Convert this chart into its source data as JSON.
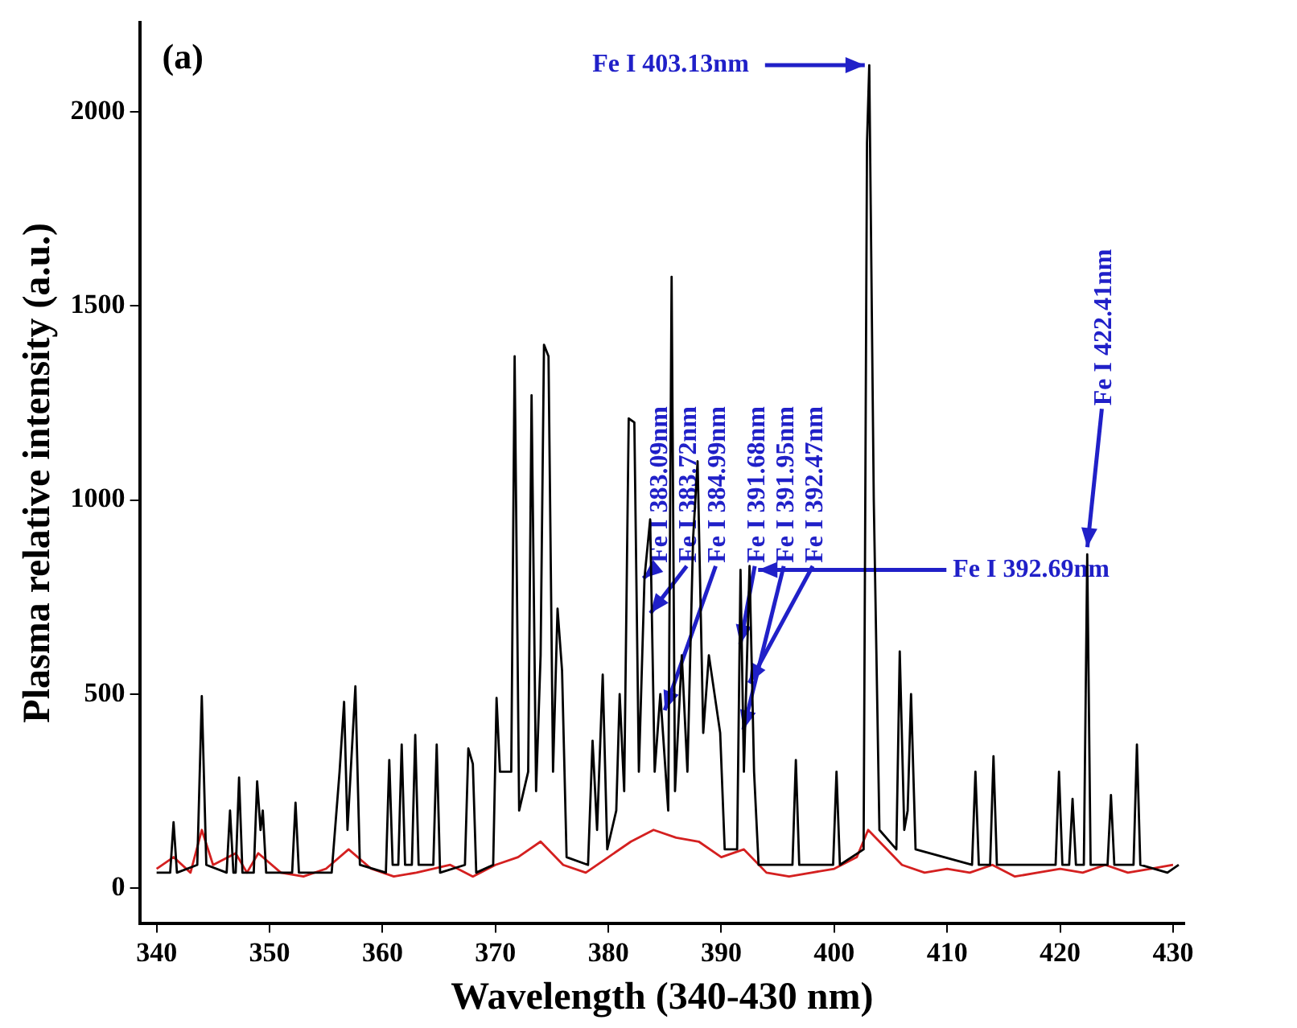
{
  "chart_data": {
    "type": "line",
    "xlabel": "Wavelength (340-430 nm)",
    "ylabel": "Plasma relative intensity (a.u.)",
    "xlim": [
      338.5,
      431
    ],
    "xticks": [
      340,
      350,
      360,
      370,
      380,
      390,
      400,
      410,
      420,
      430
    ],
    "ylim": [
      -90,
      2230
    ],
    "yticks": [
      0,
      500,
      1000,
      1500,
      2000
    ],
    "grid": false,
    "legend": false,
    "marker": "none",
    "line_style": "solid",
    "series": [
      {
        "color": "#000000",
        "x": [
          340,
          341.2,
          341.5,
          341.8,
          343.6,
          344.0,
          344.4,
          346.2,
          346.5,
          346.8,
          347.0,
          347.3,
          347.6,
          348.6,
          348.9,
          349.2,
          349.4,
          349.7,
          351.0,
          352.0,
          352.3,
          352.6,
          355.5,
          356.2,
          356.6,
          356.9,
          357.6,
          358.0,
          360.3,
          360.6,
          360.9,
          361.4,
          361.7,
          362.0,
          362.6,
          362.9,
          363.2,
          364.5,
          364.8,
          365.1,
          367.3,
          367.6,
          368.0,
          368.3,
          369.8,
          370.1,
          370.4,
          371.4,
          371.7,
          372.1,
          372.9,
          373.2,
          373.6,
          374.0,
          374.3,
          374.7,
          375.1,
          375.5,
          375.9,
          376.3,
          378.2,
          378.6,
          379.0,
          379.5,
          379.9,
          380.7,
          381.0,
          381.4,
          381.8,
          382.3,
          382.7,
          383.2,
          383.7,
          384.1,
          384.6,
          385.3,
          385.6,
          385.9,
          386.5,
          387.0,
          387.5,
          387.9,
          388.4,
          388.9,
          389.4,
          389.9,
          390.3,
          391.4,
          391.7,
          392.0,
          392.5,
          392.9,
          393.3,
          396.3,
          396.6,
          396.9,
          399.9,
          400.2,
          400.5,
          402.6,
          402.9,
          403.1,
          403.5,
          404.0,
          405.5,
          405.8,
          406.2,
          406.5,
          406.8,
          407.2,
          412.2,
          412.5,
          412.8,
          413.8,
          414.1,
          414.4,
          419.6,
          419.9,
          420.2,
          420.8,
          421.1,
          421.4,
          422.1,
          422.4,
          422.7,
          424.2,
          424.5,
          424.8,
          426.5,
          426.8,
          427.1,
          429.5,
          430.5
        ],
        "values": [
          40,
          40,
          170,
          40,
          60,
          495,
          60,
          40,
          200,
          40,
          40,
          285,
          40,
          40,
          275,
          150,
          200,
          40,
          40,
          40,
          220,
          40,
          40,
          300,
          480,
          150,
          520,
          60,
          40,
          330,
          60,
          60,
          370,
          60,
          60,
          395,
          60,
          60,
          370,
          40,
          60,
          360,
          320,
          40,
          60,
          490,
          300,
          300,
          1370,
          200,
          300,
          1270,
          250,
          600,
          1400,
          1370,
          300,
          720,
          560,
          80,
          60,
          380,
          150,
          550,
          100,
          200,
          500,
          250,
          1210,
          1200,
          300,
          800,
          950,
          300,
          500,
          200,
          1575,
          250,
          600,
          300,
          900,
          1100,
          400,
          600,
          500,
          400,
          100,
          100,
          820,
          300,
          830,
          300,
          60,
          60,
          330,
          60,
          60,
          300,
          60,
          100,
          1920,
          2120,
          1000,
          150,
          100,
          610,
          150,
          200,
          500,
          100,
          60,
          300,
          60,
          60,
          340,
          60,
          60,
          300,
          60,
          60,
          230,
          60,
          60,
          860,
          60,
          60,
          240,
          60,
          60,
          370,
          60,
          40,
          60
        ]
      },
      {
        "color": "#d42020",
        "x": [
          340,
          341.5,
          343,
          344,
          345,
          347,
          348,
          349,
          351,
          353,
          355,
          357,
          359,
          361,
          363,
          366,
          368,
          370,
          372,
          374,
          376,
          378,
          380,
          382,
          384,
          386,
          388,
          390,
          392,
          394,
          396,
          398,
          400,
          402,
          403,
          404,
          406,
          408,
          410,
          412,
          414,
          416,
          418,
          420,
          422,
          424,
          426,
          428,
          430
        ],
        "values": [
          50,
          80,
          40,
          150,
          60,
          90,
          40,
          90,
          40,
          30,
          50,
          100,
          50,
          30,
          40,
          60,
          30,
          60,
          80,
          120,
          60,
          40,
          80,
          120,
          150,
          130,
          120,
          80,
          100,
          40,
          30,
          40,
          50,
          80,
          150,
          120,
          60,
          40,
          50,
          40,
          60,
          30,
          40,
          50,
          40,
          60,
          40,
          50,
          60
        ]
      }
    ],
    "annotations": [
      "(a)",
      {
        "text": "Fe I 403.13nm",
        "x": 403.13,
        "y": 2120
      },
      {
        "text": "Fe I 383.09nm",
        "x": 383.09,
        "y": 790
      },
      {
        "text": "Fe I 383.72nm",
        "x": 383.72,
        "y": 700
      },
      {
        "text": "Fe I 384.99nm",
        "x": 384.99,
        "y": 450
      },
      {
        "text": "Fe I 391.68nm",
        "x": 391.68,
        "y": 620
      },
      {
        "text": "Fe I 391.95nm",
        "x": 391.95,
        "y": 400
      },
      {
        "text": "Fe I 392.47nm",
        "x": 392.47,
        "y": 520
      },
      {
        "text": "Fe I 392.69nm",
        "x": 392.69,
        "y": 820
      },
      {
        "text": "Fe I 422.41nm",
        "x": 422.41,
        "y": 870
      }
    ]
  }
}
